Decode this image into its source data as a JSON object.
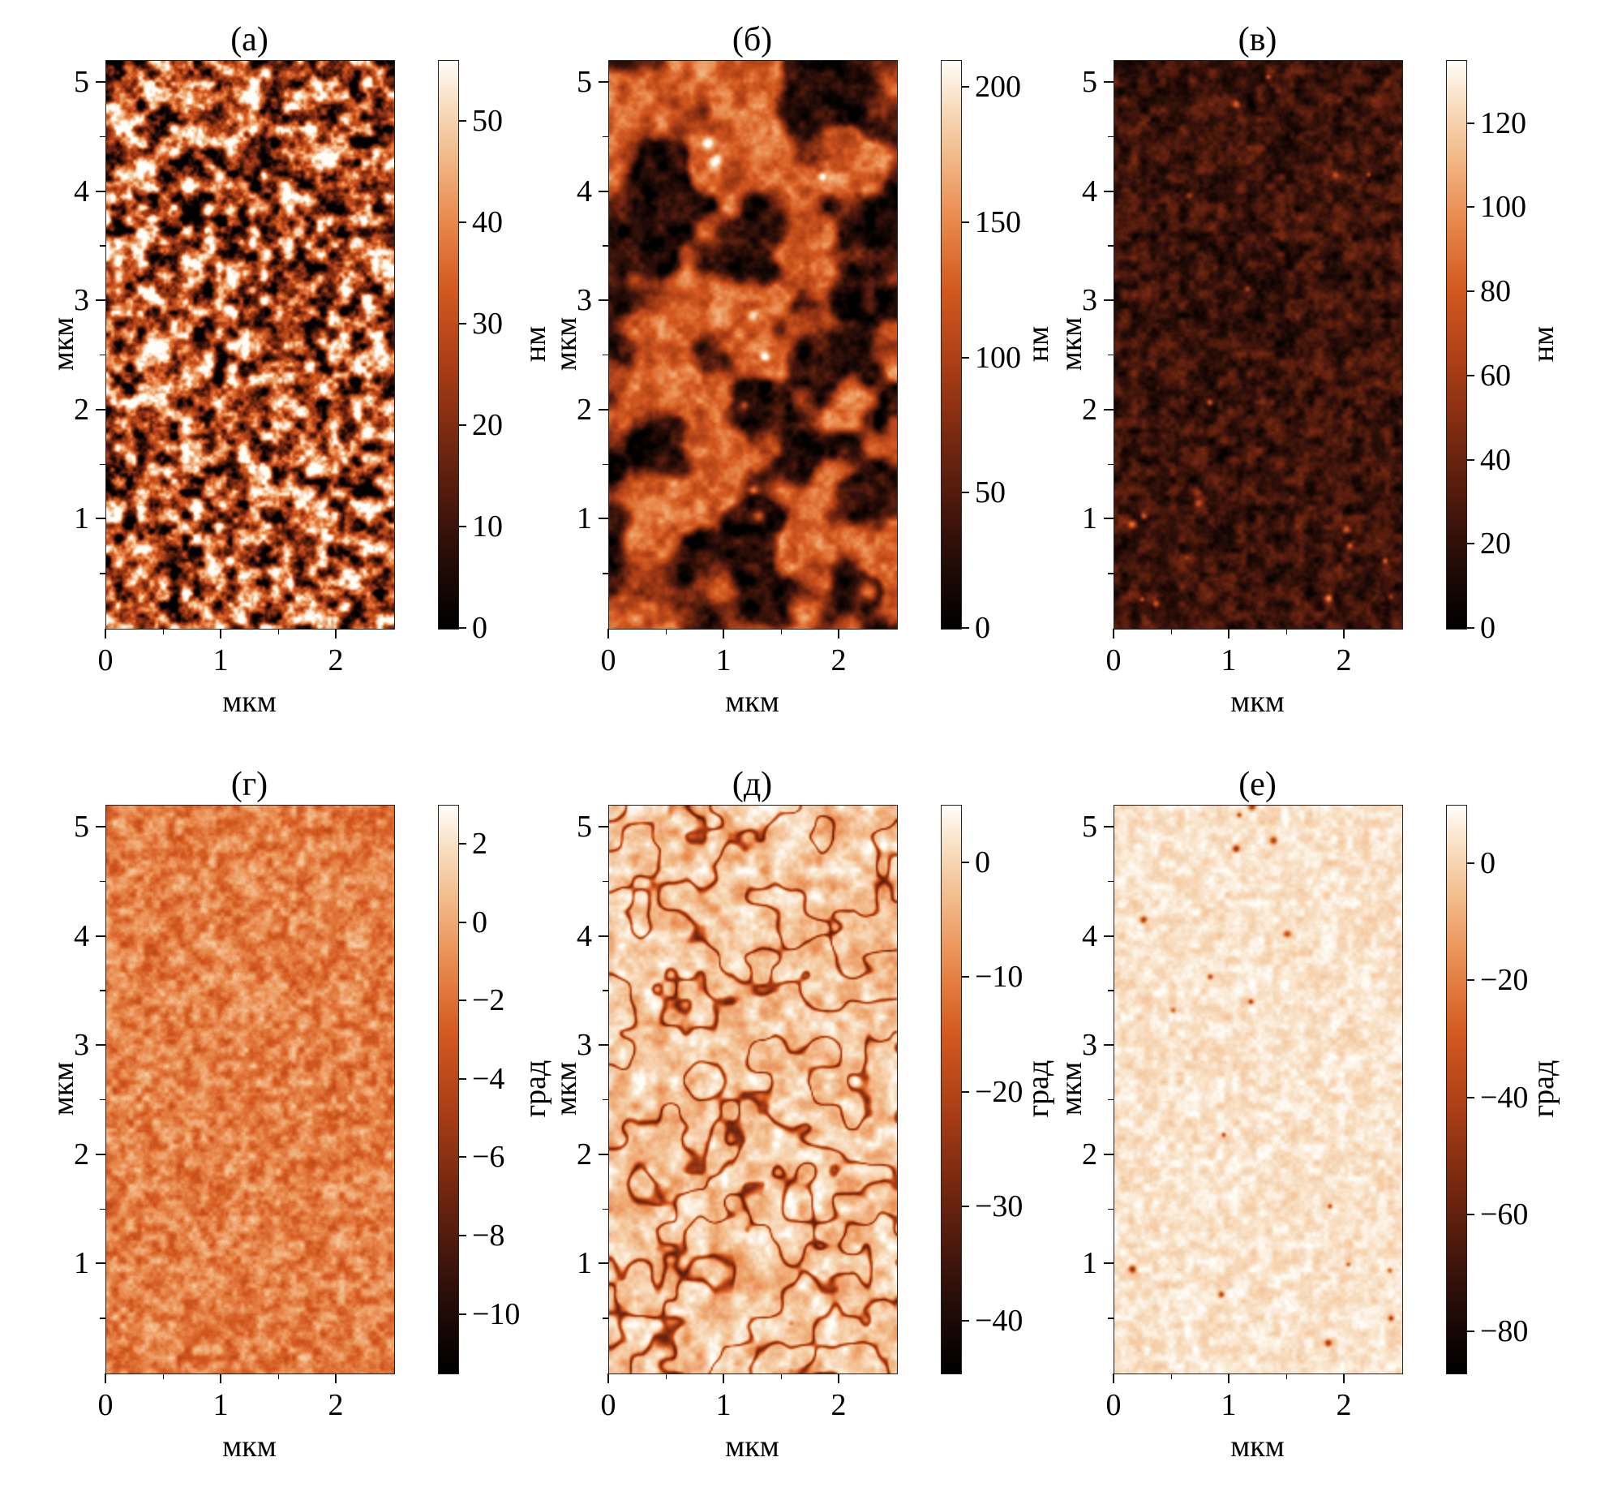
{
  "colormap": {
    "stops": [
      [
        0.0,
        "#000000"
      ],
      [
        0.15,
        "#30100a"
      ],
      [
        0.3,
        "#6b2410"
      ],
      [
        0.45,
        "#a63c16"
      ],
      [
        0.6,
        "#d55a21"
      ],
      [
        0.72,
        "#e98a4e"
      ],
      [
        0.84,
        "#f3bd8e"
      ],
      [
        0.93,
        "#f9e0c4"
      ],
      [
        1.0,
        "#fffdf8"
      ]
    ]
  },
  "chart_data": [
    {
      "type": "heatmap",
      "title": "(а)",
      "xlabel": "мкм",
      "ylabel": "мкм",
      "x_range": [
        0,
        2.5
      ],
      "y_range": [
        0,
        5.2
      ],
      "x_ticks": [
        {
          "v": 0,
          "label": "0"
        },
        {
          "v": 1,
          "label": "1"
        },
        {
          "v": 2,
          "label": "2"
        }
      ],
      "y_ticks": [
        {
          "v": 1,
          "label": "1"
        },
        {
          "v": 2,
          "label": "2"
        },
        {
          "v": 3,
          "label": "3"
        },
        {
          "v": 4,
          "label": "4"
        },
        {
          "v": 5,
          "label": "5"
        }
      ],
      "colorbar": {
        "unit": "нм",
        "min": 0,
        "max": 56,
        "ticks": [
          {
            "v": 50,
            "label": "50"
          },
          {
            "v": 40,
            "label": "40"
          },
          {
            "v": 30,
            "label": "30"
          },
          {
            "v": 20,
            "label": "20"
          },
          {
            "v": 10,
            "label": "10"
          },
          {
            "v": 0,
            "label": "0"
          }
        ]
      },
      "texture": {
        "seed": 3,
        "feature": 7,
        "octaves": 3,
        "base": 0.52,
        "amp": 1.05,
        "spots": {
          "count": 10,
          "rmin": 1.5,
          "rmax": 3,
          "delta": 0.35
        }
      }
    },
    {
      "type": "heatmap",
      "title": "(б)",
      "xlabel": "мкм",
      "ylabel": "мкм",
      "x_range": [
        0,
        2.5
      ],
      "y_range": [
        0,
        5.2
      ],
      "x_ticks": [
        {
          "v": 0,
          "label": "0"
        },
        {
          "v": 1,
          "label": "1"
        },
        {
          "v": 2,
          "label": "2"
        }
      ],
      "y_ticks": [
        {
          "v": 1,
          "label": "1"
        },
        {
          "v": 2,
          "label": "2"
        },
        {
          "v": 3,
          "label": "3"
        },
        {
          "v": 4,
          "label": "4"
        },
        {
          "v": 5,
          "label": "5"
        }
      ],
      "colorbar": {
        "unit": "нм",
        "min": 0,
        "max": 210,
        "ticks": [
          {
            "v": 200,
            "label": "200"
          },
          {
            "v": 150,
            "label": "150"
          },
          {
            "v": 100,
            "label": "100"
          },
          {
            "v": 50,
            "label": "50"
          },
          {
            "v": 0,
            "label": "0"
          }
        ]
      },
      "texture": {
        "seed": 8,
        "feature": 8,
        "octaves": 3,
        "base": 0.4,
        "amp": 0.5,
        "cell": {
          "feature": 30,
          "low": 0.1,
          "high": 0.62,
          "edge": 0.12
        },
        "spots": {
          "count": 5,
          "rmin": 2,
          "rmax": 4,
          "delta": 0.45
        },
        "fixed_spots": [
          [
            0.9,
            0.935,
            6,
            0.6
          ],
          [
            0.54,
            0.52,
            3,
            0.5
          ],
          [
            0.52,
            0.8,
            3.5,
            0.45
          ],
          [
            0.5,
            0.755,
            2.5,
            0.4
          ]
        ]
      }
    },
    {
      "type": "heatmap",
      "title": "(в)",
      "xlabel": "мкм",
      "ylabel": "мкм",
      "x_range": [
        0,
        2.5
      ],
      "y_range": [
        0,
        5.2
      ],
      "x_ticks": [
        {
          "v": 0,
          "label": "0"
        },
        {
          "v": 1,
          "label": "1"
        },
        {
          "v": 2,
          "label": "2"
        }
      ],
      "y_ticks": [
        {
          "v": 1,
          "label": "1"
        },
        {
          "v": 2,
          "label": "2"
        },
        {
          "v": 3,
          "label": "3"
        },
        {
          "v": 4,
          "label": "4"
        },
        {
          "v": 5,
          "label": "5"
        }
      ],
      "colorbar": {
        "unit": "нм",
        "min": 0,
        "max": 135,
        "ticks": [
          {
            "v": 120,
            "label": "120"
          },
          {
            "v": 100,
            "label": "100"
          },
          {
            "v": 80,
            "label": "80"
          },
          {
            "v": 60,
            "label": "60"
          },
          {
            "v": 40,
            "label": "40"
          },
          {
            "v": 20,
            "label": "20"
          },
          {
            "v": 0,
            "label": "0"
          }
        ]
      },
      "texture": {
        "seed": 5,
        "feature": 6,
        "octaves": 3,
        "base": 0.18,
        "amp": 0.22,
        "spots": {
          "count": 14,
          "rmin": 1.2,
          "rmax": 2.6,
          "delta": 0.4
        },
        "fixed_spots": [
          [
            0.06,
            0.815,
            2.5,
            0.55
          ],
          [
            0.1,
            0.8,
            2,
            0.4
          ],
          [
            0.42,
            0.075,
            2.2,
            0.5
          ],
          [
            0.74,
            0.945,
            2.4,
            0.55
          ],
          [
            0.14,
            0.955,
            2,
            0.45
          ],
          [
            0.46,
            0.4,
            1.8,
            0.35
          ]
        ]
      }
    },
    {
      "type": "heatmap",
      "title": "(г)",
      "xlabel": "мкм",
      "ylabel": "мкм",
      "x_range": [
        0,
        2.5
      ],
      "y_range": [
        0,
        5.2
      ],
      "x_ticks": [
        {
          "v": 0,
          "label": "0"
        },
        {
          "v": 1,
          "label": "1"
        },
        {
          "v": 2,
          "label": "2"
        }
      ],
      "y_ticks": [
        {
          "v": 1,
          "label": "1"
        },
        {
          "v": 2,
          "label": "2"
        },
        {
          "v": 3,
          "label": "3"
        },
        {
          "v": 4,
          "label": "4"
        },
        {
          "v": 5,
          "label": "5"
        }
      ],
      "colorbar": {
        "unit": "град",
        "min": -11.5,
        "max": 3,
        "ticks": [
          {
            "v": 2,
            "label": "2"
          },
          {
            "v": 0,
            "label": "0"
          },
          {
            "v": -2,
            "label": "−2"
          },
          {
            "v": -4,
            "label": "−4"
          },
          {
            "v": -6,
            "label": "−6"
          },
          {
            "v": -8,
            "label": "−8"
          },
          {
            "v": -10,
            "label": "−10"
          }
        ]
      },
      "texture": {
        "seed": 12,
        "feature": 5,
        "octaves": 3,
        "base": 0.7,
        "amp": 0.22
      }
    },
    {
      "type": "heatmap",
      "title": "(д)",
      "xlabel": "мкм",
      "ylabel": "мкм",
      "x_range": [
        0,
        2.5
      ],
      "y_range": [
        0,
        5.2
      ],
      "x_ticks": [
        {
          "v": 0,
          "label": "0"
        },
        {
          "v": 1,
          "label": "1"
        },
        {
          "v": 2,
          "label": "2"
        }
      ],
      "y_ticks": [
        {
          "v": 1,
          "label": "1"
        },
        {
          "v": 2,
          "label": "2"
        },
        {
          "v": 3,
          "label": "3"
        },
        {
          "v": 4,
          "label": "4"
        },
        {
          "v": 5,
          "label": "5"
        }
      ],
      "colorbar": {
        "unit": "град",
        "min": -44.5,
        "max": 5,
        "ticks": [
          {
            "v": 0,
            "label": "0"
          },
          {
            "v": -10,
            "label": "−10"
          },
          {
            "v": -20,
            "label": "−20"
          },
          {
            "v": -30,
            "label": "−30"
          },
          {
            "v": -40,
            "label": "−40"
          }
        ]
      },
      "texture": {
        "seed": 21,
        "feature": 8,
        "octaves": 3,
        "base": 0.87,
        "amp": 0.2,
        "ridge": {
          "feature": 19,
          "amp": 0.5,
          "sigma": 0.032
        }
      }
    },
    {
      "type": "heatmap",
      "title": "(е)",
      "xlabel": "мкм",
      "ylabel": "мкм",
      "x_range": [
        0,
        2.5
      ],
      "y_range": [
        0,
        5.2
      ],
      "x_ticks": [
        {
          "v": 0,
          "label": "0"
        },
        {
          "v": 1,
          "label": "1"
        },
        {
          "v": 2,
          "label": "2"
        }
      ],
      "y_ticks": [
        {
          "v": 1,
          "label": "1"
        },
        {
          "v": 2,
          "label": "2"
        },
        {
          "v": 3,
          "label": "3"
        },
        {
          "v": 4,
          "label": "4"
        },
        {
          "v": 5,
          "label": "5"
        }
      ],
      "colorbar": {
        "unit": "град",
        "min": -87,
        "max": 10,
        "ticks": [
          {
            "v": 0,
            "label": "0"
          },
          {
            "v": -20,
            "label": "−20"
          },
          {
            "v": -40,
            "label": "−40"
          },
          {
            "v": -60,
            "label": "−60"
          },
          {
            "v": -80,
            "label": "−80"
          }
        ]
      },
      "texture": {
        "seed": 30,
        "feature": 5,
        "octaves": 3,
        "base": 0.94,
        "amp": 0.1,
        "spots": {
          "count": 12,
          "rmin": 1,
          "rmax": 2.2,
          "delta": -0.5
        },
        "fixed_spots": [
          [
            0.06,
            0.815,
            2.2,
            -0.6
          ],
          [
            0.42,
            0.075,
            2,
            -0.55
          ],
          [
            0.74,
            0.945,
            2,
            -0.5
          ],
          [
            0.33,
            0.3,
            1.6,
            -0.45
          ],
          [
            0.55,
            0.06,
            2.2,
            -0.5
          ]
        ]
      }
    }
  ]
}
